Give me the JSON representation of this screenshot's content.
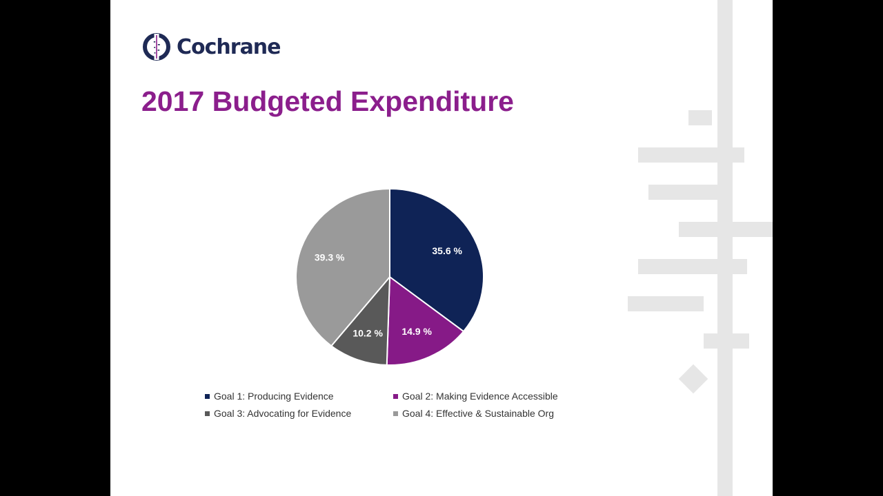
{
  "brand": {
    "name": "Cochrane",
    "color": "#1f2a55"
  },
  "slide": {
    "title": "2017 Budgeted Expenditure",
    "title_color": "#8b1e8c"
  },
  "chart_data": {
    "type": "pie",
    "categories": [
      "Goal 1: Producing Evidence",
      "Goal 2: Making Evidence Accessible",
      "Goal 3: Advocating for Evidence",
      "Goal 4: Effective & Sustainable Org"
    ],
    "values": [
      35.6,
      14.9,
      10.2,
      39.3
    ],
    "value_labels": [
      "35.6 %",
      "14.9 %",
      "10.2 %",
      "39.3 %"
    ],
    "colors": [
      "#0f2356",
      "#861a87",
      "#595959",
      "#9a9a9a"
    ],
    "legend_position": "bottom",
    "start": "top, clockwise"
  }
}
